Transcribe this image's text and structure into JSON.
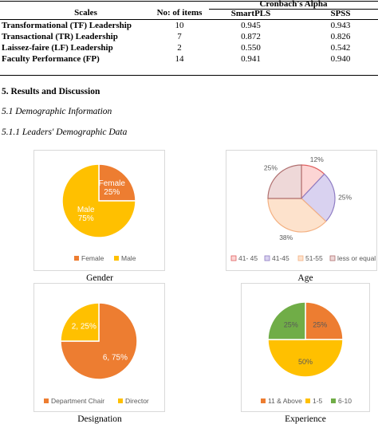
{
  "table": {
    "headers": {
      "scales": "Scales",
      "items": "No: of items",
      "alpha": "Cronbach's Alpha",
      "smartpls": "SmartPLS",
      "spss": "SPSS"
    },
    "rows": [
      {
        "scale": "Transformational (TF) Leadership",
        "items": "10",
        "smartpls": "0.945",
        "spss": "0.943"
      },
      {
        "scale": "Transactional (TR) Leadership",
        "items": "7",
        "smartpls": "0.872",
        "spss": "0.826"
      },
      {
        "scale": "Laissez-faire (LF) Leadership",
        "items": "2",
        "smartpls": "0.550",
        "spss": "0.542"
      },
      {
        "scale": "Faculty Performance (FP)",
        "items": "14",
        "smartpls": "0.941",
        "spss": "0.940"
      }
    ]
  },
  "section": {
    "heading": "5.   Results and Discussion",
    "sub1": "5.1 Demographic Information",
    "sub2": "5.1.1 Leaders' Demographic Data"
  },
  "colors": {
    "orange": "#ED7D31",
    "gold": "#FFC000",
    "green": "#70AD47",
    "pink": "#FCD5D4",
    "lavender": "#D9D2F0",
    "peach": "#FDE2CC",
    "rose": "#EED8D8"
  },
  "chart_data": [
    {
      "type": "pie",
      "caption": "Gender",
      "slices": [
        {
          "label": "Female",
          "value": 25,
          "text": "Female\n25%"
        },
        {
          "label": "Male",
          "value": 75,
          "text": "Male\n75%"
        }
      ],
      "legend": [
        "Female",
        "Male"
      ],
      "legend_placement": "bottom"
    },
    {
      "type": "pie",
      "caption": "Age",
      "slices": [
        {
          "label": "41- 45",
          "value": 12,
          "text": "12%"
        },
        {
          "label": "41-45",
          "value": 25,
          "text": "25%"
        },
        {
          "label": "51-55",
          "value": 38,
          "text": "38%"
        },
        {
          "label": "less or equal to 40",
          "value": 25,
          "text": "25%"
        }
      ],
      "legend": [
        "41- 45",
        "41-45",
        "51-55",
        "less or equal to 40"
      ],
      "legend_placement": "bottom"
    },
    {
      "type": "pie",
      "caption": "Designation",
      "slices": [
        {
          "label": "Department Chair",
          "value": 75,
          "text": "6, 75%"
        },
        {
          "label": "Director",
          "value": 25,
          "text": "2, 25%"
        }
      ],
      "legend": [
        "Department Chair",
        "Director"
      ],
      "legend_placement": "bottom"
    },
    {
      "type": "pie",
      "caption": "Experience",
      "slices": [
        {
          "label": "11 & Above",
          "value": 25,
          "text": "25%"
        },
        {
          "label": "1-5",
          "value": 50,
          "text": "50%"
        },
        {
          "label": "6-10",
          "value": 25,
          "text": "25%"
        }
      ],
      "legend": [
        "11 & Above",
        "1-5",
        "6-10"
      ],
      "legend_placement": "bottom"
    }
  ]
}
